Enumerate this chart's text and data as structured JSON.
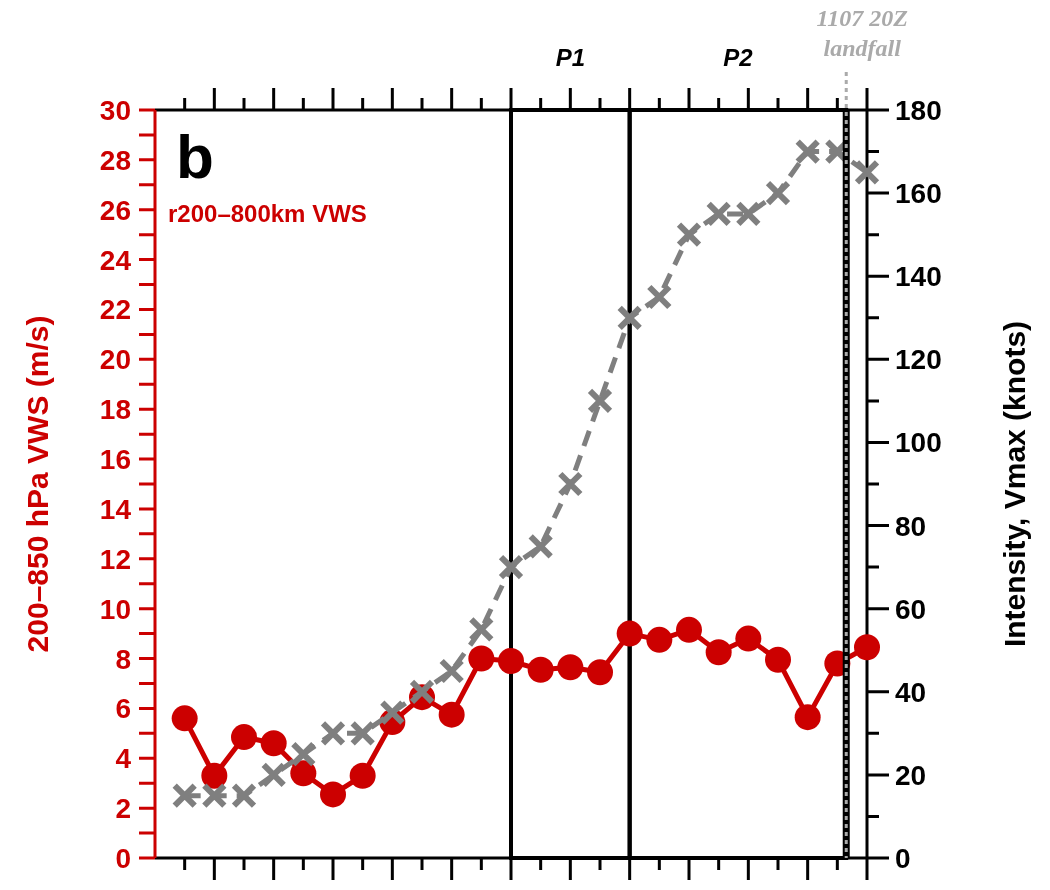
{
  "chart_data": {
    "type": "line",
    "title": "b",
    "ylabel": "200–850 hPa VWS (m/s)",
    "y2label": "Intensity, Vmax (knots)",
    "categories": [
      null,
      null,
      null,
      null,
      null,
      null,
      null,
      null,
      null,
      null,
      null,
      null,
      null,
      null,
      null,
      null,
      null,
      null,
      null,
      null,
      null,
      null,
      null,
      null
    ],
    "ylim": [
      0,
      30
    ],
    "yticks": [
      0,
      2,
      4,
      6,
      8,
      10,
      12,
      14,
      16,
      18,
      20,
      22,
      24,
      26,
      28,
      30
    ],
    "y2lim": [
      0,
      180
    ],
    "y2ticks": [
      0,
      20,
      40,
      60,
      80,
      100,
      120,
      140,
      160,
      180
    ],
    "legend": "top left",
    "series": [
      {
        "name": "r200–800km VWS",
        "color": "#cc0000",
        "marker": "circle",
        "line_style": "solid",
        "values": [
          5.6,
          3.3,
          4.85,
          4.6,
          3.4,
          2.55,
          3.3,
          5.45,
          6.45,
          5.75,
          8.0,
          7.9,
          7.55,
          7.65,
          7.45,
          9.0,
          8.75,
          9.15,
          8.25,
          8.8,
          7.95,
          5.65,
          7.8,
          8.45
        ]
      },
      {
        "color": "#7f7f7f",
        "axis": "y2",
        "marker": "cross",
        "line_style": "dashed",
        "values": [
          15,
          15,
          15,
          20,
          25,
          30,
          30,
          35,
          40,
          45,
          55,
          70,
          75,
          90,
          110,
          130,
          135,
          150,
          155,
          155,
          160,
          170,
          170,
          165
        ]
      }
    ],
    "annotations": [
      "P1",
      "P2",
      "1107 20Z landfall"
    ]
  }
}
